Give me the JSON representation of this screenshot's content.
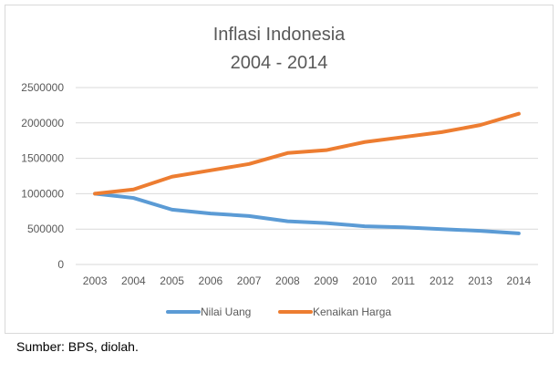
{
  "chart_data": {
    "type": "line",
    "title": "Inflasi Indonesia",
    "subtitle": "2004 - 2014",
    "xlabel": "",
    "ylabel": "",
    "categories": [
      "2003",
      "2004",
      "2005",
      "2006",
      "2007",
      "2008",
      "2009",
      "2010",
      "2011",
      "2012",
      "2013",
      "2014"
    ],
    "ylim": [
      0,
      2500000
    ],
    "yticks": [
      0,
      500000,
      1000000,
      1500000,
      2000000,
      2500000
    ],
    "grid": true,
    "legend": "bottom",
    "series": [
      {
        "name": "Nilai Uang",
        "color": "#5B9BD5",
        "values": [
          1000000,
          940000,
          775000,
          720000,
          685000,
          610000,
          585000,
          540000,
          525000,
          500000,
          475000,
          440000
        ]
      },
      {
        "name": "Kenaikan Harga",
        "color": "#ED7D31",
        "values": [
          1000000,
          1060000,
          1240000,
          1330000,
          1420000,
          1575000,
          1615000,
          1730000,
          1800000,
          1870000,
          1970000,
          2130000
        ]
      }
    ]
  },
  "source": "Sumber: BPS, diolah."
}
